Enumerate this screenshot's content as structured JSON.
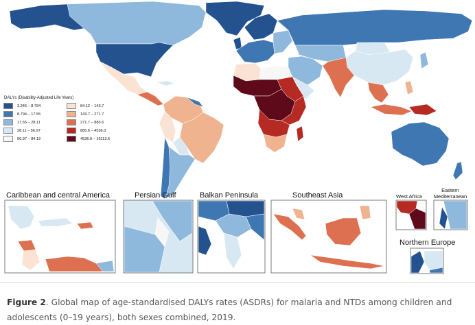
{
  "legend": {
    "title": "DALYs (Disability-Adjusted Life Years)",
    "classes": [
      {
        "label": "3.346 – 8.794",
        "color": "#23528f"
      },
      {
        "label": "8.794 – 17.55",
        "color": "#3f77b3"
      },
      {
        "label": "17.55 – 28.11",
        "color": "#8fb8dd"
      },
      {
        "label": "28.11 – 56.97",
        "color": "#d7e8f3"
      },
      {
        "label": "56.97 – 84.12",
        "color": "#f7f7f7"
      },
      {
        "label": "84.12 – 143.7",
        "color": "#fbe3d3"
      },
      {
        "label": "143.7 – 271.7",
        "color": "#f0b38f"
      },
      {
        "label": "271.7 – 885.6",
        "color": "#dd7050"
      },
      {
        "label": "885.6 – 4536.0",
        "color": "#b52a23"
      },
      {
        "label": "4536.0 – 16113.6",
        "color": "#5e0a1b"
      }
    ]
  },
  "insets": {
    "caribbean": "Caribbean and central America",
    "persian_gulf": "Persian Gulf",
    "balkan": "Balkan Peninsula",
    "southeast_asia": "Southeast Asia",
    "west_africa": "West Africa",
    "eastern_med_1": "Eastern",
    "eastern_med_2": "Mediterranean",
    "northern_europe": "Northern Europe"
  },
  "caption": {
    "label": "Figure 2",
    "text": ". Global map of age-standardised DALYs rates (ASDRs) for malaria and NTDs among children and adolescents (0–19 years), both sexes combined, 2019."
  }
}
